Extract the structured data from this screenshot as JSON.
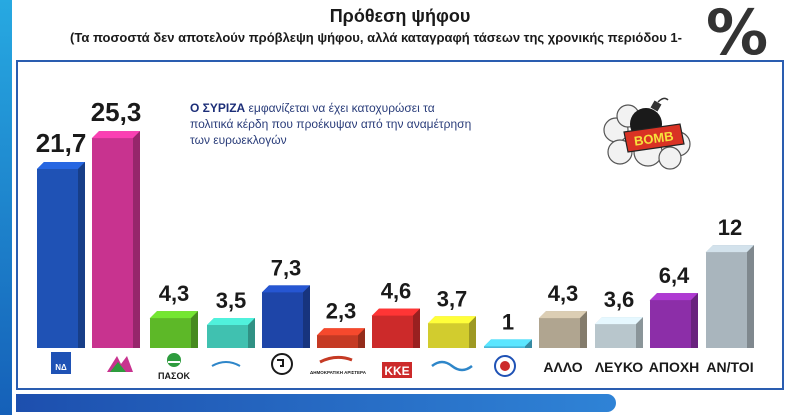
{
  "header": {
    "title": "Πρόθεση ψήφου",
    "subtitle": "(Τα ποσοστά δεν αποτελούν πρόβλεψη ψήφου, αλλά καταγραφή τάσεων της χρονικής περιόδου 1-",
    "percent": "%"
  },
  "annotation": {
    "bold": "Ο ΣΥΡΙΖΑ",
    "rest": " εμφανίζεται να έχει κατοχυρώσει τα πολιτικά κέρδη που προέκυψαν από την αναμέτρηση των ευρωεκλογών"
  },
  "bomb": {
    "label": "BOMB",
    "icon": "bomb-icon"
  },
  "logos": {
    "nd": "ΝΔ",
    "pasok": "ΠΑΣΟΚ",
    "dimar": "ΔΗΜΟΚΡΑΤΙΚΗ ΑΡΙΣΤΕΡΑ",
    "kke": "ΚΚΕ"
  },
  "chart_data": {
    "type": "bar",
    "categories": [
      "ΝΔ",
      "ΣΥΡΙΖΑ",
      "ΠΑΣΟΚ",
      "ΑΝΕΞΑΡΤΗΤΟΙ ΕΛΛΗΝΕΣ",
      "ΧΡΥΣΗ ΑΥΓΗ",
      "ΔΗΜΟΚΡΑΤΙΚΗ ΑΡΙΣΤΕΡΑ",
      "ΚΚΕ",
      "ΤΟ ΠΟΤΑΜΙ",
      "ΛΑΟΣ",
      "ΑΛΛΟ",
      "ΛΕΥΚΟ",
      "ΑΠΟΧΗ",
      "ΑΝ/ΤΟΙ"
    ],
    "values": [
      21.7,
      25.3,
      4.3,
      3.5,
      7.3,
      2.3,
      4.6,
      3.7,
      1,
      4.3,
      3.6,
      6.4,
      12
    ],
    "value_labels": [
      "21,7",
      "25,3",
      "4,3",
      "3,5",
      "7,3",
      "2,3",
      "4,6",
      "3,7",
      "1",
      "4,3",
      "3,6",
      "6,4",
      "12"
    ],
    "text_labels": [
      "",
      "",
      "",
      "",
      "",
      "",
      "",
      "",
      "",
      "ΑΛΛΟ",
      "ΛΕΥΚΟ",
      "ΑΠΟΧΗ",
      "ΑΝ/ΤΟΙ"
    ],
    "colors": [
      "#1f52b5",
      "#c8338f",
      "#5db828",
      "#40c1b0",
      "#1e45a8",
      "#c53a24",
      "#cc2a2a",
      "#d2cc2e",
      "#49b8d8",
      "#b0a590",
      "#b8c6cc",
      "#8c2ea8",
      "#a9b5bd"
    ],
    "ylim": [
      0,
      28
    ],
    "grid": false,
    "legend": "none"
  }
}
